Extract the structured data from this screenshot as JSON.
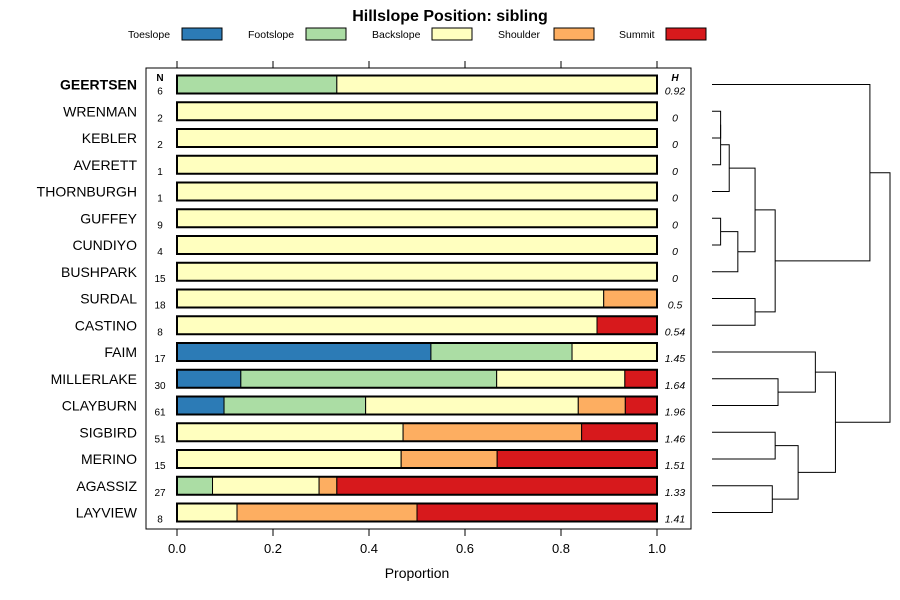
{
  "chart_data": {
    "type": "bar",
    "subtype": "stacked-horizontal-proportion",
    "title": "Hillslope Position: sibling",
    "xlabel": "Proportion",
    "xlim": [
      0,
      1
    ],
    "xticks": [
      "0.0",
      "0.2",
      "0.4",
      "0.6",
      "0.8",
      "1.0"
    ],
    "xtick_values": [
      0,
      0.2,
      0.4,
      0.6,
      0.8,
      1.0
    ],
    "count_header": "N",
    "entropy_header": "H",
    "legend": [
      {
        "name": "Toeslope",
        "color": "#2C7BB6"
      },
      {
        "name": "Footslope",
        "color": "#ABDDA4"
      },
      {
        "name": "Backslope",
        "color": "#FFFFBF"
      },
      {
        "name": "Shoulder",
        "color": "#FDAE61"
      },
      {
        "name": "Summit",
        "color": "#D7191C"
      }
    ],
    "rows": [
      {
        "label": "GEERTSEN",
        "bold": true,
        "n": "6",
        "h": "0.92",
        "values": [
          0,
          0.333,
          0.667,
          0,
          0
        ]
      },
      {
        "label": "WRENMAN",
        "bold": false,
        "n": "2",
        "h": "0",
        "values": [
          0,
          0,
          1,
          0,
          0
        ]
      },
      {
        "label": "KEBLER",
        "bold": false,
        "n": "2",
        "h": "0",
        "values": [
          0,
          0,
          1,
          0,
          0
        ]
      },
      {
        "label": "AVERETT",
        "bold": false,
        "n": "1",
        "h": "0",
        "values": [
          0,
          0,
          1,
          0,
          0
        ]
      },
      {
        "label": "THORNBURGH",
        "bold": false,
        "n": "1",
        "h": "0",
        "values": [
          0,
          0,
          1,
          0,
          0
        ]
      },
      {
        "label": "GUFFEY",
        "bold": false,
        "n": "9",
        "h": "0",
        "values": [
          0,
          0,
          1,
          0,
          0
        ]
      },
      {
        "label": "CUNDIYO",
        "bold": false,
        "n": "4",
        "h": "0",
        "values": [
          0,
          0,
          1,
          0,
          0
        ]
      },
      {
        "label": "BUSHPARK",
        "bold": false,
        "n": "15",
        "h": "0",
        "values": [
          0,
          0,
          1,
          0,
          0
        ]
      },
      {
        "label": "SURDAL",
        "bold": false,
        "n": "18",
        "h": "0.5",
        "values": [
          0,
          0,
          0.889,
          0.111,
          0
        ]
      },
      {
        "label": "CASTINO",
        "bold": false,
        "n": "8",
        "h": "0.54",
        "values": [
          0,
          0,
          0.875,
          0,
          0.125
        ]
      },
      {
        "label": "FAIM",
        "bold": false,
        "n": "17",
        "h": "1.45",
        "values": [
          0.529,
          0.294,
          0.177,
          0,
          0
        ]
      },
      {
        "label": "MILLERLAKE",
        "bold": false,
        "n": "30",
        "h": "1.64",
        "values": [
          0.133,
          0.533,
          0.267,
          0,
          0.067
        ]
      },
      {
        "label": "CLAYBURN",
        "bold": false,
        "n": "61",
        "h": "1.96",
        "values": [
          0.098,
          0.295,
          0.443,
          0.098,
          0.066
        ]
      },
      {
        "label": "SIGBIRD",
        "bold": false,
        "n": "51",
        "h": "1.46",
        "values": [
          0,
          0,
          0.471,
          0.372,
          0.157
        ]
      },
      {
        "label": "MERINO",
        "bold": false,
        "n": "15",
        "h": "1.51",
        "values": [
          0,
          0,
          0.467,
          0.2,
          0.333
        ]
      },
      {
        "label": "AGASSIZ",
        "bold": false,
        "n": "27",
        "h": "1.33",
        "values": [
          0,
          0.074,
          0.222,
          0.037,
          0.667
        ]
      },
      {
        "label": "LAYVIEW",
        "bold": false,
        "n": "8",
        "h": "1.41",
        "values": [
          0,
          0,
          0.125,
          0.375,
          0.5
        ]
      }
    ],
    "dendrogram": {
      "merges": [
        [
          -2,
          -3,
          0.3
        ],
        [
          -4,
          1,
          0.3
        ],
        [
          -5,
          2,
          0.6
        ],
        [
          -6,
          -7,
          0.3
        ],
        [
          4,
          -8,
          0.9
        ],
        [
          3,
          5,
          1.5
        ],
        [
          -9,
          -10,
          1.5
        ],
        [
          6,
          7,
          2.2
        ],
        [
          -1,
          8,
          5.5
        ],
        [
          -12,
          -13,
          2.3
        ],
        [
          -11,
          10,
          3.6
        ],
        [
          -14,
          -15,
          2.2
        ],
        [
          -16,
          -17,
          2.1
        ],
        [
          12,
          13,
          3.0
        ],
        [
          11,
          14,
          4.3
        ],
        [
          9,
          15,
          6.2
        ]
      ],
      "max_height": 6.2
    }
  }
}
